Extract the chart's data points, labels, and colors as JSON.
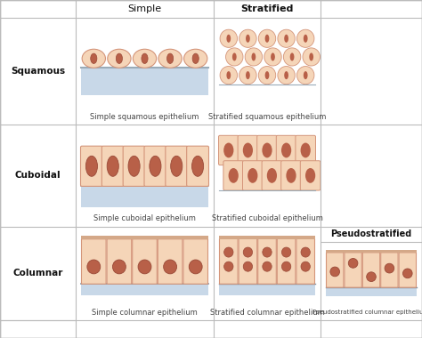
{
  "col_headers": [
    "Simple",
    "Stratified"
  ],
  "row_headers": [
    "Squamous",
    "Cuboidal",
    "Columnar"
  ],
  "pseudo_header": "Pseudostratified",
  "captions": [
    [
      "Simple squamous epithelium",
      "Stratified squamous epithelium",
      ""
    ],
    [
      "Simple cuboidal epithelium",
      "Stratified cuboidal epithelium",
      ""
    ],
    [
      "Simple columnar epithelium",
      "Stratified columnar epithelium",
      "Pseudostratified columnar epithelium"
    ]
  ],
  "bg_color": "#ffffff",
  "cell_fill": "#f5d5b8",
  "cell_fill2": "#f0c8a0",
  "nucleus_color": "#b86048",
  "nucleus_edge": "#9a4a38",
  "membrane_color": "#d4a888",
  "blue_mem": "#c8d8e8",
  "border_color": "#bbbbbb",
  "text_color": "#111111",
  "caption_color": "#444444",
  "cell_edge": "#d4957a",
  "top_border_color": "#d4a888"
}
